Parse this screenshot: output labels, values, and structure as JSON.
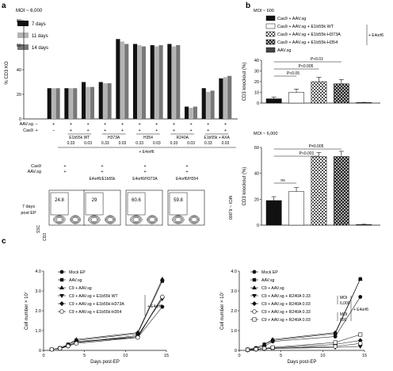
{
  "panel_letters": {
    "a": "a",
    "b": "b",
    "c": "c"
  },
  "panel_a": {
    "moi_label": "MOI ~ 6,000",
    "legend": [
      "7 days",
      "11 days",
      "14 days"
    ],
    "ylabel": "% CD3 KO",
    "row_labels": [
      "AAV.sg",
      "Cas9"
    ],
    "conditions": [
      {
        "aav": "−",
        "cas9": "+"
      },
      {
        "aav": "+",
        "cas9": "−"
      },
      {
        "aav": "+",
        "cas9": "+"
      },
      {
        "aav": "+",
        "cas9": "+"
      },
      {
        "aav": "+",
        "cas9": "+"
      },
      {
        "aav": "+",
        "cas9": "+"
      },
      {
        "aav": "+",
        "cas9": "+"
      },
      {
        "aav": "+",
        "cas9": "+"
      },
      {
        "aav": "+",
        "cas9": "+"
      },
      {
        "aav": "+",
        "cas9": "+"
      },
      {
        "aav": "+",
        "cas9": "+"
      },
      {
        "aav": "+",
        "cas9": "+"
      }
    ],
    "groups": [
      "E1b55k WT",
      "H373A",
      "H354",
      "R240A",
      "E1b55k + AXA"
    ],
    "doses": [
      "0.33",
      "0.03",
      "0.33",
      "0.03",
      "0.33",
      "0.03",
      "0.33",
      "0.03",
      "0.33",
      "0.03"
    ],
    "e4_label": "+ E4orf6",
    "flow": {
      "rows": [
        {
          "label": "Cas9",
          "values": [
            "+",
            "+",
            "+",
            "+"
          ]
        },
        {
          "label": "AAV.sg",
          "values": [
            "+",
            "+",
            "+",
            "+"
          ]
        }
      ],
      "columns": [
        "",
        "E4orf6/E1b55k",
        "E4orf6/H373A",
        "E4orf6/H354"
      ],
      "row_title": "7 days post EP",
      "pct": [
        "24.8",
        "29",
        "60.6",
        "59.8"
      ],
      "ssc": "SSC",
      "cd3": "CD3",
      "moi": "MOI ~ 6,000"
    }
  },
  "panel_b": {
    "legend": [
      "Cas9 + AAV.sg",
      "Cas9 + AAV.sg + E1b55k WT",
      "Cas9 + AAV.sg + E1b55k-H373A",
      "Cas9 + AAV.sg + E1b55k-H354",
      "AAV.sg"
    ],
    "e4_label": "+ E4orf6",
    "top": {
      "moi": "MOI ~ 600",
      "pvals": [
        "P<0.01",
        "P<0.005",
        "P<0.05"
      ]
    },
    "bottom": {
      "moi": "MOI ~ 6,000",
      "pvals": [
        "P=0.005",
        "P<0.001",
        "ns"
      ]
    }
  },
  "panel_c": {
    "left": {
      "legend": [
        "Mock EP",
        "AAV.sg",
        "C9 + AAV.sg",
        "C9 + AAV.sg + E1b55k WT",
        "C9 + AAV.sg + E1b55k-H373A",
        "C9 + AAV.sg + E1b55k-H354"
      ],
      "e4_label": "+ E4orf6"
    },
    "right": {
      "legend": [
        "Mock EP",
        "AAV.sg",
        "C9 + AAV.sg",
        "C9 + AAV.sg + R240A 0.33",
        "C9 + AAV.sg + R240A 0.03",
        "C9 + AAV.sg + R240A 0.33",
        "C9 + AAV.sg + R240A 0.03"
      ],
      "moi_hi": [
        "MOI",
        "6,000"
      ],
      "moi_lo": [
        "MOI",
        "600"
      ],
      "e4_label": "+ E4orf6"
    }
  },
  "chart_data": [
    {
      "id": "a_bar",
      "type": "bar",
      "ylabel": "% CD3 KO",
      "ylim": [
        0,
        80
      ],
      "yticks": [
        "0",
        "20",
        "40",
        "60",
        "80"
      ],
      "categories": [
        "1",
        "2",
        "3",
        "4",
        "5",
        "6",
        "7",
        "8",
        "9",
        "10",
        "11",
        "12"
      ],
      "series": [
        {
          "name": "7 days",
          "color": "#111111",
          "values": [
            0,
            25,
            25,
            30,
            30,
            65,
            61,
            60,
            61,
            10,
            25,
            33
          ]
        },
        {
          "name": "11 days",
          "color": "#b3b3b3",
          "values": [
            0,
            25,
            25,
            26,
            29,
            63,
            60,
            59,
            59,
            9,
            22,
            34
          ]
        },
        {
          "name": "14 days",
          "color": "#777777",
          "values": [
            0,
            25,
            25,
            26,
            29,
            61,
            59,
            60,
            60,
            10,
            23,
            35
          ]
        }
      ]
    },
    {
      "id": "b_top",
      "type": "bar",
      "ylabel": "CD3 knockout (%)",
      "ylim": [
        0,
        40
      ],
      "yticks": [
        "0",
        "10",
        "20",
        "30",
        "40"
      ],
      "categories": [
        "Cas9 + AAV.sg",
        "Cas9 + AAV.sg + E1b55k WT",
        "Cas9 + AAV.sg + E1b55k-H373A",
        "Cas9 + AAV.sg + E1b55k-H354",
        "AAV.sg"
      ],
      "values": [
        4,
        10,
        20,
        18,
        0.5
      ],
      "errors": [
        1.5,
        3,
        4,
        4,
        0.2
      ]
    },
    {
      "id": "b_bottom",
      "type": "bar",
      "ylabel": "CD3 knockout (%)",
      "ylim": [
        0,
        60
      ],
      "yticks": [
        "0",
        "20",
        "40",
        "60"
      ],
      "categories": [
        "Cas9 + AAV.sg",
        "Cas9 + AAV.sg + E1b55k WT",
        "Cas9 + AAV.sg + E1b55k-H373A",
        "Cas9 + AAV.sg + E1b55k-H354",
        "AAV.sg"
      ],
      "values": [
        19,
        26,
        53,
        53,
        0.5
      ],
      "errors": [
        3,
        3,
        3,
        4,
        0.2
      ]
    },
    {
      "id": "c_left",
      "type": "line",
      "xlabel": "Days post-EP",
      "ylabel": "Cell number × 10⁷",
      "xlim": [
        0,
        15
      ],
      "ylim": [
        0,
        4
      ],
      "xticks": [
        "0",
        "5",
        "10",
        "15"
      ],
      "yticks": [
        "0",
        "1.0",
        "2.0",
        "3.0",
        "4.0"
      ],
      "x": [
        1,
        2,
        3,
        4,
        11.5,
        14.5
      ],
      "series": [
        {
          "name": "Mock EP",
          "values": [
            0.05,
            0.1,
            0.2,
            0.45,
            0.65,
            2.2
          ]
        },
        {
          "name": "AAV.sg",
          "values": [
            0.05,
            0.12,
            0.3,
            0.5,
            0.85,
            3.5
          ]
        },
        {
          "name": "C9 + AAV.sg",
          "values": [
            0.05,
            0.12,
            0.3,
            0.55,
            0.9,
            3.6
          ]
        },
        {
          "name": "C9 + AAV.sg + E1b55k WT",
          "values": [
            0.05,
            0.1,
            0.25,
            0.4,
            0.75,
            2.6
          ]
        },
        {
          "name": "C9 + AAV.sg + E1b55k-H373A",
          "values": [
            0.05,
            0.1,
            0.25,
            0.4,
            0.7,
            2.7
          ]
        },
        {
          "name": "C9 + AAV.sg + E1b55k-H354",
          "values": [
            0.05,
            0.1,
            0.22,
            0.35,
            0.65,
            2.7
          ]
        }
      ]
    },
    {
      "id": "c_right",
      "type": "line",
      "xlabel": "Days post-EP",
      "ylabel": "Cell number × 10⁷",
      "xlim": [
        0,
        15
      ],
      "ylim": [
        0,
        4
      ],
      "xticks": [
        "0",
        "5",
        "10",
        "15"
      ],
      "yticks": [
        "0",
        "1.0",
        "2.0",
        "3.0",
        "4.0"
      ],
      "x": [
        1,
        2,
        3,
        4,
        11.5,
        14.5
      ],
      "series": [
        {
          "name": "Mock EP",
          "values": [
            0.05,
            0.1,
            0.2,
            0.45,
            0.7,
            2.7
          ]
        },
        {
          "name": "AAV.sg",
          "values": [
            0.05,
            0.12,
            0.3,
            0.5,
            0.85,
            3.6
          ]
        },
        {
          "name": "C9 + AAV.sg",
          "values": [
            0.05,
            0.12,
            0.3,
            0.55,
            0.9,
            3.6
          ]
        },
        {
          "name": "C9 + AAV.sg + R240A 0.33 (MOI 6,000)",
          "values": [
            0.02,
            0.05,
            0.08,
            0.1,
            0.15,
            0.2
          ]
        },
        {
          "name": "C9 + AAV.sg + R240A 0.03 (MOI 6,000)",
          "values": [
            0.02,
            0.05,
            0.08,
            0.12,
            0.3,
            0.5
          ]
        },
        {
          "name": "C9 + AAV.sg + R240A 0.33 (MOI 600)",
          "values": [
            0.02,
            0.05,
            0.08,
            0.1,
            0.2,
            0.35
          ]
        },
        {
          "name": "C9 + AAV.sg + R240A 0.03 (MOI 600)",
          "values": [
            0.03,
            0.06,
            0.1,
            0.15,
            0.4,
            0.8
          ]
        }
      ]
    }
  ]
}
